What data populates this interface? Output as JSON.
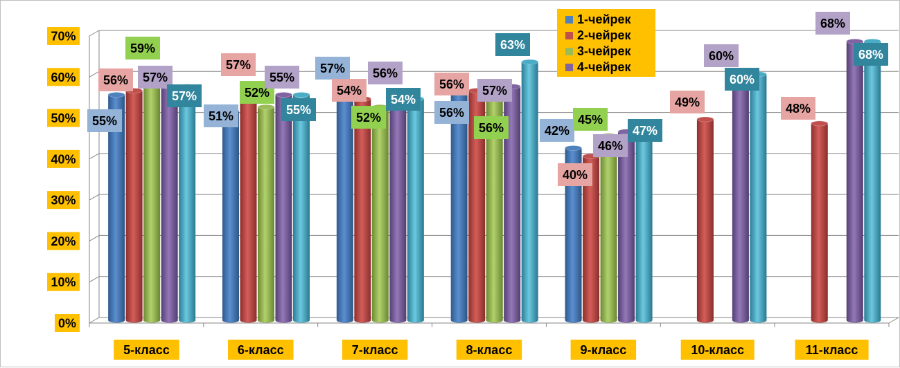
{
  "chart_data": {
    "type": "bar",
    "categories": [
      "5-класс",
      "6-класс",
      "7-класс",
      "8-класс",
      "9-класс",
      "10-класс",
      "11-класс"
    ],
    "series": [
      {
        "name": "1-чейрек",
        "color": "#4f81bd",
        "label_bg": "#95b3d7",
        "values": [
          55,
          51,
          57,
          56,
          42,
          null,
          null
        ],
        "labels": [
          "55%",
          "51%",
          "57%",
          "56%",
          "42%",
          null,
          null
        ]
      },
      {
        "name": "2-чейрек",
        "color": "#c0504d",
        "label_bg": "#e6a4a2",
        "values": [
          56,
          57,
          54,
          56,
          40,
          49,
          48
        ],
        "labels": [
          "56%",
          "57%",
          "54%",
          "56%",
          "40%",
          "49%",
          "48%"
        ]
      },
      {
        "name": "3-чейрек",
        "color": "#9bbb59",
        "label_bg": "#92d050",
        "values": [
          59,
          52,
          52,
          56,
          45,
          null,
          null
        ],
        "labels": [
          "59%",
          "52%",
          "52%",
          "56%",
          "45%",
          null,
          null
        ]
      },
      {
        "name": "4-чейрек",
        "color": "#8064a2",
        "label_bg": "#b3a2c7",
        "values": [
          57,
          55,
          56,
          57,
          46,
          60,
          68
        ],
        "labels": [
          "57%",
          "55%",
          "56%",
          "57%",
          "46%",
          "60%",
          "68%"
        ]
      },
      {
        "name": "",
        "color": "#4bacc6",
        "label_bg": "#31859c",
        "values": [
          57,
          55,
          54,
          63,
          47,
          60,
          68
        ],
        "labels": [
          "57%",
          "55%",
          "54%",
          "63%",
          "47%",
          "60%",
          "68%"
        ]
      }
    ],
    "y_ticks": [
      "0%",
      "10%",
      "20%",
      "30%",
      "40%",
      "50%",
      "60%",
      "70%"
    ],
    "ylim": [
      0,
      70
    ],
    "grid": true,
    "legend_position": "top-center",
    "axis_label_bg": "#ffc000",
    "title": "",
    "xlabel": "",
    "ylabel": ""
  }
}
